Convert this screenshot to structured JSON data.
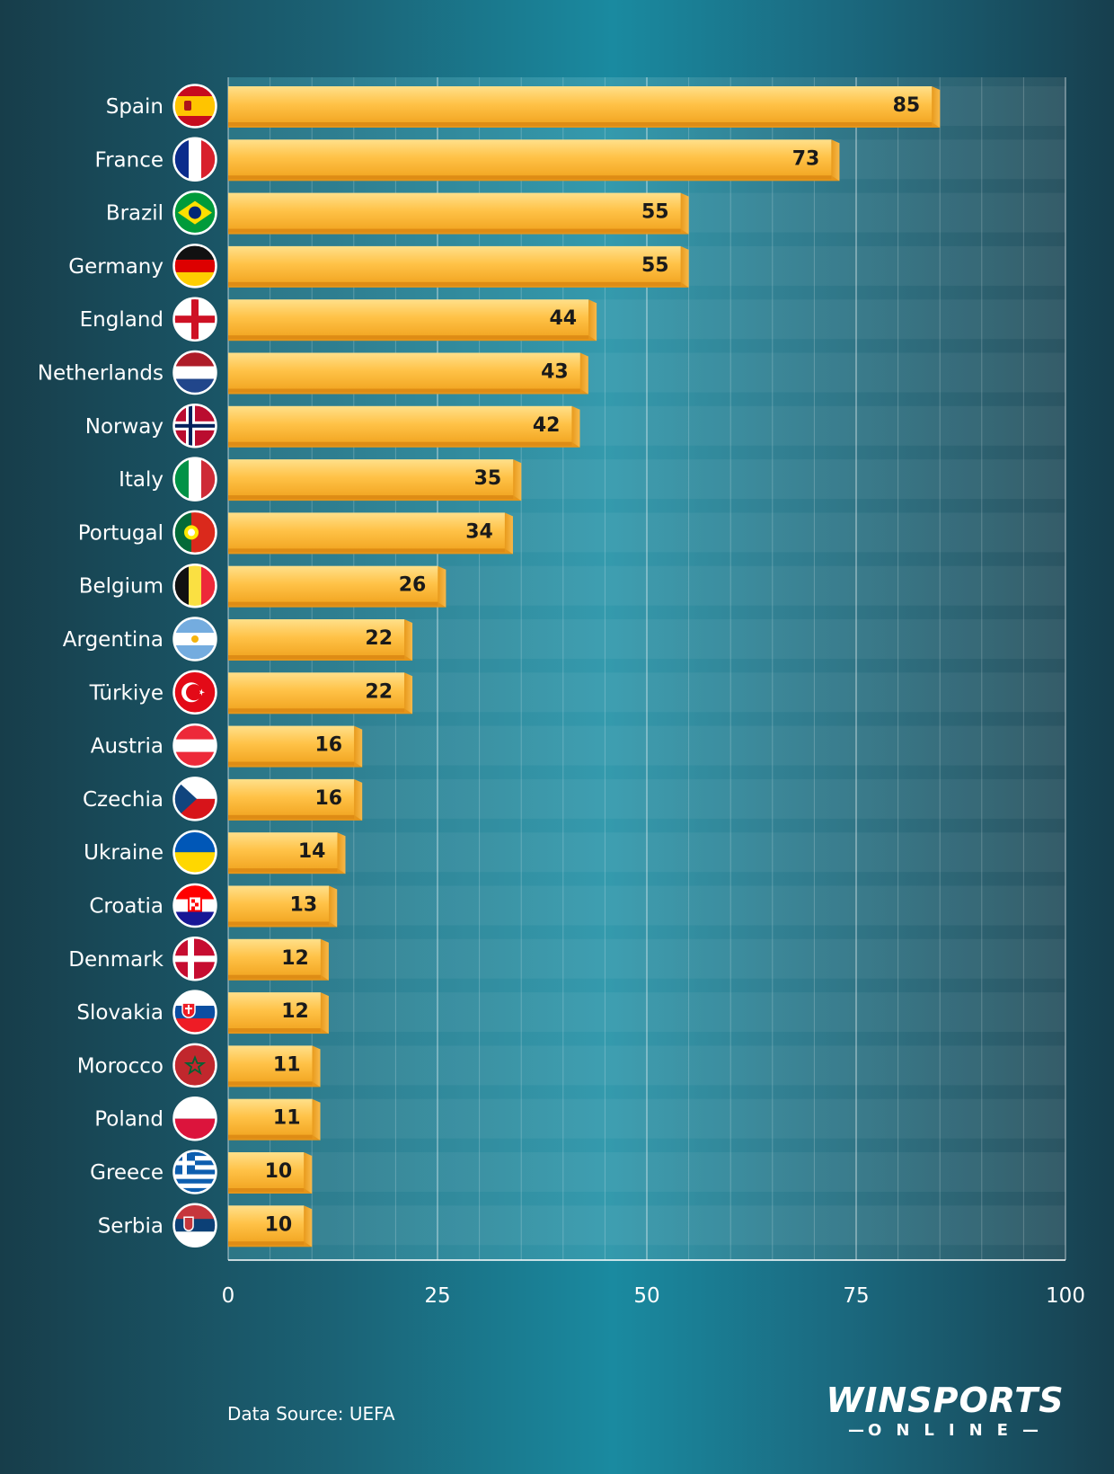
{
  "chart_data": {
    "type": "bar",
    "orientation": "horizontal",
    "categories": [
      "Spain",
      "France",
      "Brazil",
      "Germany",
      "England",
      "Netherlands",
      "Norway",
      "Italy",
      "Portugal",
      "Belgium",
      "Argentina",
      "Türkiye",
      "Austria",
      "Czechia",
      "Ukraine",
      "Croatia",
      "Denmark",
      "Slovakia",
      "Morocco",
      "Poland",
      "Greece",
      "Serbia"
    ],
    "values": [
      85,
      73,
      55,
      55,
      44,
      43,
      42,
      35,
      34,
      26,
      22,
      22,
      16,
      16,
      14,
      13,
      12,
      12,
      11,
      11,
      10,
      10
    ],
    "xlim": [
      0,
      100
    ],
    "xticks": [
      0,
      25,
      50,
      75,
      100
    ],
    "tick_labels": [
      "0",
      "25",
      "50",
      "75",
      "100"
    ],
    "grid": true,
    "bar_color": "#f7b733",
    "flags": [
      "spain-flag-icon",
      "france-flag-icon",
      "brazil-flag-icon",
      "germany-flag-icon",
      "england-flag-icon",
      "netherlands-flag-icon",
      "norway-flag-icon",
      "italy-flag-icon",
      "portugal-flag-icon",
      "belgium-flag-icon",
      "argentina-flag-icon",
      "turkiye-flag-icon",
      "austria-flag-icon",
      "czechia-flag-icon",
      "ukraine-flag-icon",
      "croatia-flag-icon",
      "denmark-flag-icon",
      "slovakia-flag-icon",
      "morocco-flag-icon",
      "poland-flag-icon",
      "greece-flag-icon",
      "serbia-flag-icon"
    ]
  },
  "footer": {
    "source": "Data Source: UEFA",
    "logo_main": "WINSPORTS",
    "logo_sub": "ONLINE"
  }
}
